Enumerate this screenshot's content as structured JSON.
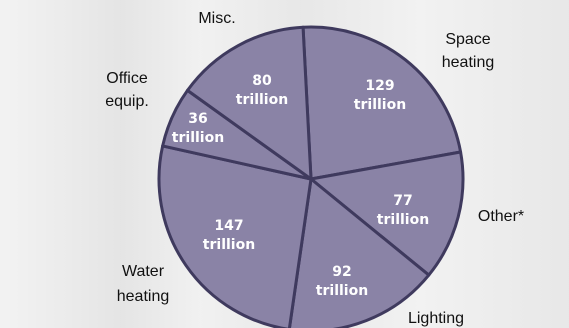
{
  "chart_data": {
    "type": "pie",
    "title": "",
    "slices": [
      {
        "category": "Space heating",
        "value": 129,
        "label_value": "129",
        "label_unit": "trillion"
      },
      {
        "category": "Other*",
        "value": 77,
        "label_value": "77",
        "label_unit": "trillion"
      },
      {
        "category": "Lighting",
        "value": 92,
        "label_value": "92",
        "label_unit": "trillion"
      },
      {
        "category": "Water heating",
        "value": 147,
        "label_value": "147",
        "label_unit": "trillion"
      },
      {
        "category": "Office equip.",
        "value": 36,
        "label_value": "36",
        "label_unit": "trillion"
      },
      {
        "category": "Misc.",
        "value": 80,
        "label_value": "80",
        "label_unit": "trillion"
      }
    ],
    "legend": "none",
    "grid": false
  },
  "colors": {
    "slice_fill": "#8a83a6",
    "slice_border": "#3f3a5e",
    "value_text": "#ffffff",
    "category_text": "#111111"
  }
}
